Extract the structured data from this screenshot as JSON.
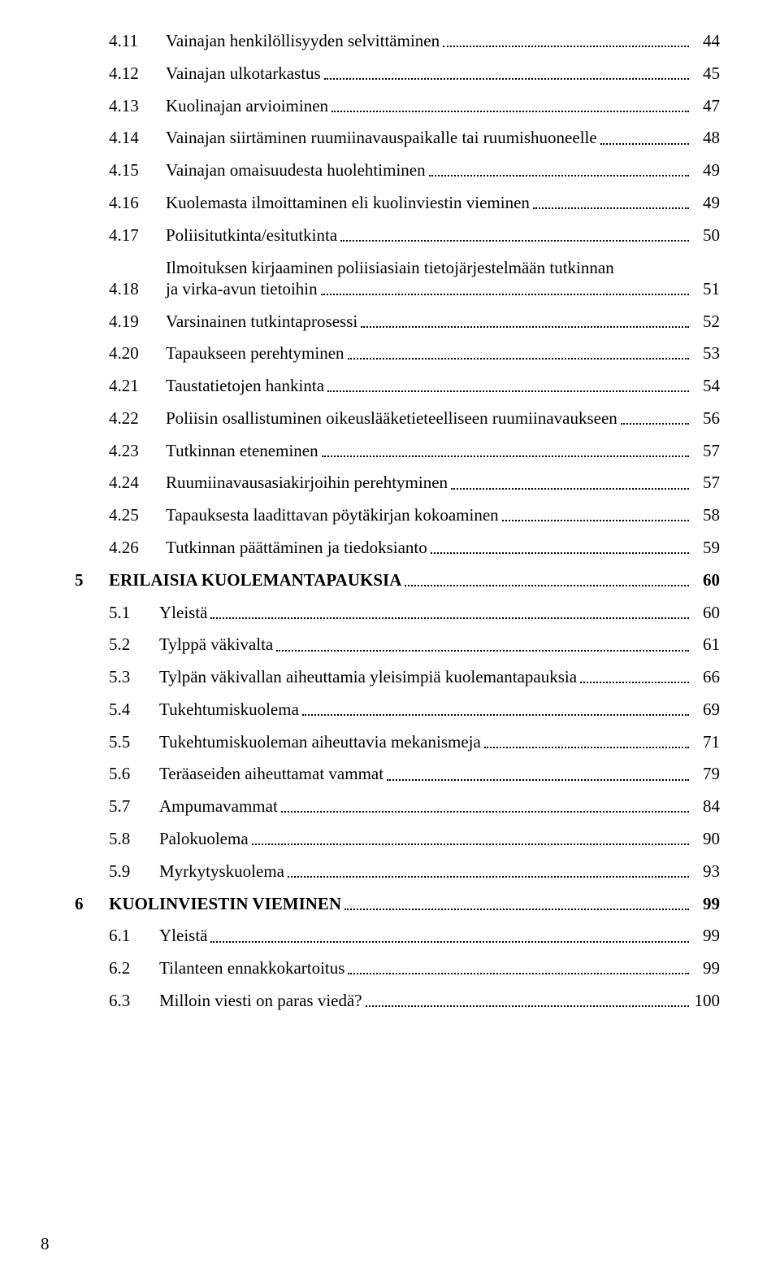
{
  "font": {
    "family": "Times New Roman",
    "base_size_pt": 16,
    "color": "#000000"
  },
  "background_color": "#ffffff",
  "page_number": "8",
  "entries": [
    {
      "level": 2,
      "num": "4.11",
      "title": "Vainajan henkilöllisyyden selvittäminen",
      "page": "44",
      "bold": false
    },
    {
      "level": 2,
      "num": "4.12",
      "title": "Vainajan ulkotarkastus",
      "page": "45",
      "bold": false
    },
    {
      "level": 2,
      "num": "4.13",
      "title": "Kuolinajan arvioiminen",
      "page": "47",
      "bold": false
    },
    {
      "level": 2,
      "num": "4.14",
      "title": "Vainajan siirtäminen ruumiinavauspaikalle tai ruumishuoneelle",
      "page": "48",
      "bold": false
    },
    {
      "level": 2,
      "num": "4.15",
      "title": "Vainajan omaisuudesta huolehtiminen",
      "page": "49",
      "bold": false
    },
    {
      "level": 2,
      "num": "4.16",
      "title": "Kuolemasta ilmoittaminen eli kuolinviestin vieminen",
      "page": "49",
      "bold": false
    },
    {
      "level": 2,
      "num": "4.17",
      "title": "Poliisitutkinta/esitutkinta",
      "page": "50",
      "bold": false
    },
    {
      "level": 2,
      "num": "4.18",
      "title_lines": [
        "Ilmoituksen kirjaaminen poliisiasiain tietojärjestelmään tutkinnan",
        "ja virka-avun tietoihin"
      ],
      "page": "51",
      "bold": false
    },
    {
      "level": 2,
      "num": "4.19",
      "title": "Varsinainen tutkintaprosessi",
      "page": "52",
      "bold": false
    },
    {
      "level": 2,
      "num": "4.20",
      "title": "Tapaukseen perehtyminen",
      "page": "53",
      "bold": false
    },
    {
      "level": 2,
      "num": "4.21",
      "title": "Taustatietojen hankinta",
      "page": "54",
      "bold": false
    },
    {
      "level": 2,
      "num": "4.22",
      "title": "Poliisin osallistuminen oikeuslääketieteelliseen ruumiinavaukseen",
      "page": "56",
      "bold": false
    },
    {
      "level": 2,
      "num": "4.23",
      "title": "Tutkinnan eteneminen",
      "page": "57",
      "bold": false
    },
    {
      "level": 2,
      "num": "4.24",
      "title": "Ruumiinavausasiakirjoihin perehtyminen",
      "page": "57",
      "bold": false
    },
    {
      "level": 2,
      "num": "4.25",
      "title": "Tapauksesta laadittavan pöytäkirjan kokoaminen",
      "page": "58",
      "bold": false
    },
    {
      "level": 2,
      "num": "4.26",
      "title": "Tutkinnan päättäminen ja tiedoksianto",
      "page": "59",
      "bold": false
    },
    {
      "level": 1,
      "chapter": "5",
      "num": "",
      "title": "ERILAISIA KUOLEMANTAPAUKSIA",
      "page": "60",
      "bold": true
    },
    {
      "level": 2,
      "num": "5.1",
      "title": "Yleistä",
      "page": "60",
      "bold": false
    },
    {
      "level": 2,
      "num": "5.2",
      "title": "Tylppä väkivalta",
      "page": "61",
      "bold": false
    },
    {
      "level": 2,
      "num": "5.3",
      "title": "Tylpän väkivallan aiheuttamia yleisimpiä kuolemantapauksia",
      "page": "66",
      "bold": false
    },
    {
      "level": 2,
      "num": "5.4",
      "title": "Tukehtumiskuolema",
      "page": "69",
      "bold": false
    },
    {
      "level": 2,
      "num": "5.5",
      "title": "Tukehtumiskuoleman aiheuttavia mekanismeja",
      "page": "71",
      "bold": false
    },
    {
      "level": 2,
      "num": "5.6",
      "title": "Teräaseiden aiheuttamat vammat",
      "page": "79",
      "bold": false
    },
    {
      "level": 2,
      "num": "5.7",
      "title": "Ampumavammat",
      "page": "84",
      "bold": false
    },
    {
      "level": 2,
      "num": "5.8",
      "title": "Palokuolema",
      "page": "90",
      "bold": false
    },
    {
      "level": 2,
      "num": "5.9",
      "title": "Myrkytyskuolema",
      "page": "93",
      "bold": false
    },
    {
      "level": 1,
      "chapter": "6",
      "num": "",
      "title": "KUOLINVIESTIN VIEMINEN",
      "page": "99",
      "bold": true
    },
    {
      "level": 2,
      "num": "6.1",
      "title": "Yleistä",
      "page": "99",
      "bold": false
    },
    {
      "level": 2,
      "num": "6.2",
      "title": "Tilanteen ennakkokartoitus",
      "page": "99",
      "bold": false
    },
    {
      "level": 2,
      "num": "6.3",
      "title": "Milloin viesti on paras viedä?",
      "page": "100",
      "bold": false
    }
  ]
}
